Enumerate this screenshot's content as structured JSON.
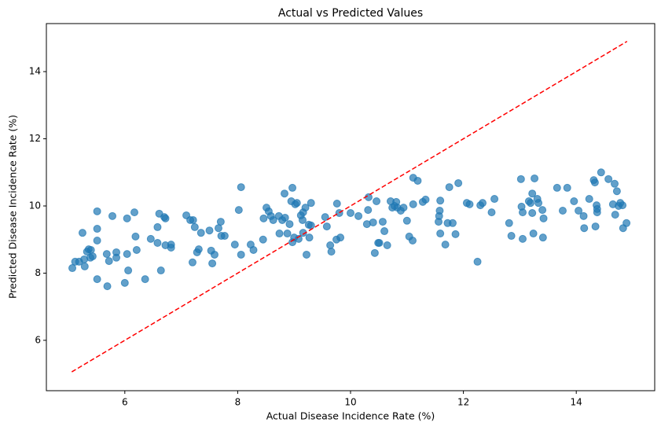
{
  "chart_data": {
    "type": "scatter",
    "title": "Actual vs Predicted Values",
    "x_label": "Actual Disease Incidence Rate (%)",
    "y_label": "Predicted Disease Incidence Rate (%)",
    "color": "#1f77b4",
    "x": [
      5.07,
      5.12,
      5.19,
      5.25,
      5.28,
      5.29,
      5.33,
      5.36,
      5.4,
      5.39,
      5.43,
      5.51,
      5.51,
      5.51,
      5.51,
      5.68,
      5.69,
      5.72,
      5.78,
      5.85,
      5.85,
      6.0,
      6.04,
      6.04,
      6.06,
      6.17,
      6.19,
      6.21,
      6.36,
      6.46,
      6.58,
      6.58,
      6.61,
      6.64,
      6.7,
      6.72,
      6.72,
      6.82,
      6.82,
      7.09,
      7.16,
      7.21,
      7.2,
      7.24,
      7.28,
      7.31,
      7.35,
      7.5,
      7.53,
      7.55,
      7.59,
      7.66,
      7.7,
      7.71,
      7.77,
      7.95,
      8.02,
      8.06,
      8.06,
      8.23,
      8.28,
      8.45,
      8.46,
      8.51,
      8.55,
      8.59,
      8.63,
      8.73,
      8.74,
      8.79,
      8.83,
      8.84,
      8.88,
      8.92,
      8.95,
      8.97,
      8.97,
      9.0,
      9.02,
      9.05,
      9.08,
      9.12,
      9.15,
      9.16,
      9.16,
      9.2,
      9.22,
      9.26,
      9.27,
      9.3,
      9.3,
      9.55,
      9.58,
      9.64,
      9.66,
      9.75,
      9.76,
      9.8,
      9.82,
      10.0,
      10.14,
      10.29,
      10.31,
      10.32,
      10.4,
      10.43,
      10.46,
      10.49,
      10.51,
      10.57,
      10.6,
      10.65,
      10.71,
      10.74,
      10.78,
      10.81,
      10.83,
      10.89,
      10.94,
      11.0,
      11.04,
      11.1,
      11.11,
      11.11,
      11.19,
      11.28,
      11.33,
      11.56,
      11.57,
      11.58,
      11.59,
      11.59,
      11.68,
      11.72,
      11.75,
      11.81,
      11.86,
      11.91,
      12.06,
      12.11,
      12.25,
      12.3,
      12.34,
      12.5,
      12.55,
      12.81,
      12.85,
      13.02,
      13.03,
      13.05,
      13.05,
      13.16,
      13.19,
      13.22,
      13.22,
      13.24,
      13.26,
      13.31,
      13.33,
      13.4,
      13.41,
      13.42,
      13.66,
      13.76,
      13.84,
      13.96,
      14.04,
      14.13,
      14.14,
      14.23,
      14.31,
      14.33,
      14.34,
      14.36,
      14.37,
      14.37,
      14.44,
      14.57,
      14.65,
      14.68,
      14.69,
      14.72,
      14.75,
      14.78,
      14.82,
      14.83,
      14.89
    ],
    "y": [
      8.15,
      8.34,
      8.34,
      9.2,
      8.41,
      8.2,
      8.64,
      8.71,
      8.69,
      8.46,
      8.5,
      9.84,
      9.32,
      8.97,
      7.82,
      8.57,
      7.61,
      8.36,
      9.7,
      8.62,
      8.46,
      7.71,
      9.63,
      8.57,
      8.08,
      9.81,
      9.09,
      8.69,
      7.82,
      9.02,
      8.9,
      9.37,
      9.77,
      8.08,
      9.67,
      9.63,
      8.83,
      8.85,
      8.76,
      9.72,
      9.58,
      9.58,
      8.32,
      9.37,
      8.62,
      8.71,
      9.2,
      9.27,
      8.67,
      8.29,
      8.55,
      9.34,
      9.53,
      9.11,
      9.11,
      8.85,
      9.88,
      10.56,
      8.55,
      8.85,
      8.69,
      9.0,
      9.63,
      9.95,
      9.84,
      9.7,
      9.58,
      9.7,
      9.18,
      9.58,
      10.37,
      9.65,
      9.18,
      9.46,
      10.14,
      10.54,
      8.92,
      9.06,
      10.05,
      10.09,
      9.02,
      9.72,
      9.58,
      9.81,
      9.2,
      9.95,
      8.55,
      9.44,
      9.06,
      9.42,
      10.09,
      9.67,
      9.39,
      8.83,
      8.64,
      9.0,
      10.07,
      9.79,
      9.06,
      9.79,
      9.7,
      9.46,
      9.88,
      10.26,
      9.51,
      8.6,
      10.14,
      8.9,
      8.9,
      9.53,
      9.25,
      8.83,
      10.14,
      9.95,
      10.0,
      10.12,
      9.95,
      9.86,
      9.95,
      9.56,
      9.09,
      8.97,
      10.05,
      10.84,
      10.75,
      10.12,
      10.19,
      9.53,
      9.7,
      9.86,
      10.16,
      9.18,
      8.85,
      9.49,
      10.56,
      9.49,
      9.16,
      10.68,
      10.09,
      10.05,
      8.34,
      10.02,
      10.09,
      9.81,
      10.21,
      9.49,
      9.11,
      10.8,
      9.98,
      9.81,
      9.02,
      10.14,
      10.09,
      10.37,
      9.79,
      9.18,
      10.82,
      10.21,
      10.09,
      9.88,
      9.06,
      9.63,
      10.54,
      9.86,
      10.54,
      10.14,
      9.86,
      9.7,
      9.34,
      10.21,
      10.77,
      10.7,
      9.39,
      10.02,
      9.81,
      9.91,
      11.0,
      10.8,
      10.05,
      10.66,
      9.74,
      10.44,
      10.0,
      10.09,
      10.02,
      9.34,
      9.49
    ],
    "reference_line": {
      "x": [
        5.06,
        14.9
      ],
      "y": [
        5.06,
        14.9
      ],
      "color": "#ff0000"
    },
    "xlim": [
      4.61,
      15.39
    ],
    "ylim": [
      4.5,
      15.43
    ],
    "xticks": [
      6,
      8,
      10,
      12,
      14
    ],
    "yticks": [
      6,
      8,
      10,
      12,
      14
    ],
    "grid": false
  }
}
